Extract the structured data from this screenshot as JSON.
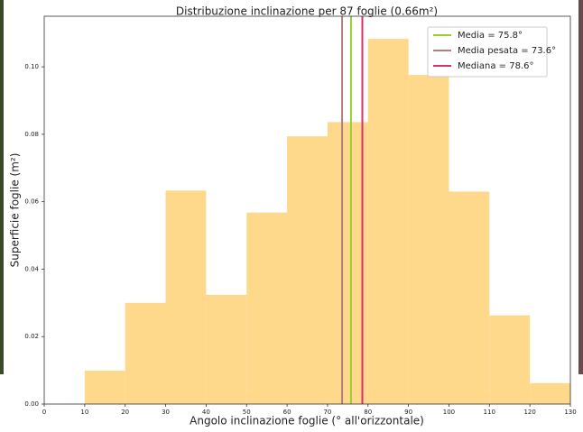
{
  "chart_data": {
    "type": "histogram",
    "title": "Distribuzione inclinazione per 87 foglie (0.66m²)",
    "x_label": "Angolo inclinazione foglie (° all'orizzontale)",
    "y_label": "Superficie foglie (m²)",
    "bins": [
      0,
      10,
      20,
      30,
      40,
      50,
      60,
      70,
      80,
      90,
      100,
      110,
      120,
      130
    ],
    "values": [
      0,
      0.0099,
      0.03,
      0.0633,
      0.0324,
      0.0568,
      0.0794,
      0.0836,
      0.1083,
      0.0976,
      0.063,
      0.0263,
      0.0062
    ],
    "color": "#fed98c",
    "xlim": [
      0,
      130
    ],
    "ylim": [
      0,
      0.115
    ],
    "xticks": [
      0,
      10,
      20,
      30,
      40,
      50,
      60,
      70,
      80,
      90,
      100,
      110,
      120,
      130
    ],
    "yticks": [
      {
        "value": 0,
        "label": "0.00"
      },
      {
        "value": 0.02,
        "label": "0.02"
      },
      {
        "value": 0.04,
        "label": "0.04"
      },
      {
        "value": 0.06,
        "label": "0.06"
      },
      {
        "value": 0.08,
        "label": "0.08"
      },
      {
        "value": 0.1,
        "label": "0.10"
      }
    ],
    "lines": [
      {
        "name": "Media = 75.8°",
        "x": 75.8,
        "color": "#9acd32"
      },
      {
        "name": "Media pesata = 73.6°",
        "x": 73.6,
        "color": "#b08080"
      },
      {
        "name": "Mediana = 78.6°",
        "x": 78.6,
        "color": "#d6336c"
      }
    ],
    "legend": "upper right"
  }
}
